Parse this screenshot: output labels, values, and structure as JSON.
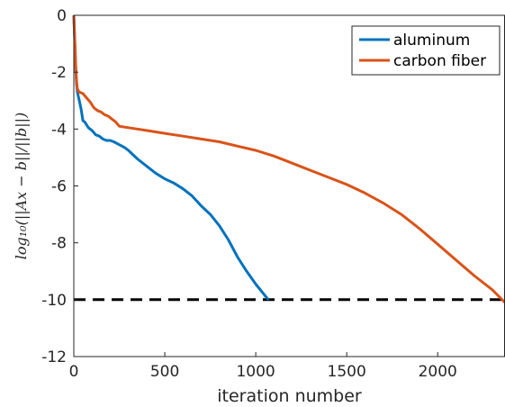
{
  "chart_data": {
    "type": "line",
    "title": "",
    "xlabel": "iteration number",
    "ylabel": "log₁₀(||Ax − b||/||b||)",
    "xlim": [
      0,
      2370
    ],
    "ylim": [
      -12,
      0
    ],
    "xticks": [
      0,
      500,
      1000,
      1500,
      2000
    ],
    "yticks": [
      0,
      -2,
      -4,
      -6,
      -8,
      -10,
      -12
    ],
    "xtick_labels": [
      "0",
      "500",
      "1000",
      "1500",
      "2000"
    ],
    "ytick_labels": [
      "0",
      "-2",
      "-4",
      "-6",
      "-8",
      "-10",
      "-12"
    ],
    "grid": false,
    "legend_position": "top-right",
    "series": [
      {
        "name": "aluminum",
        "color": "#0072BD",
        "x": [
          0,
          5,
          10,
          15,
          20,
          30,
          40,
          50,
          60,
          70,
          80,
          100,
          120,
          140,
          160,
          180,
          200,
          220,
          250,
          280,
          300,
          350,
          400,
          450,
          500,
          550,
          600,
          650,
          700,
          750,
          800,
          850,
          900,
          950,
          1000,
          1050,
          1070
        ],
        "y": [
          0,
          -0.9,
          -1.8,
          -2.4,
          -2.7,
          -3.0,
          -3.3,
          -3.7,
          -3.75,
          -3.85,
          -3.95,
          -4.05,
          -4.2,
          -4.25,
          -4.35,
          -4.4,
          -4.4,
          -4.45,
          -4.55,
          -4.65,
          -4.75,
          -5.05,
          -5.3,
          -5.55,
          -5.75,
          -5.9,
          -6.1,
          -6.35,
          -6.7,
          -7.0,
          -7.4,
          -7.9,
          -8.5,
          -9.0,
          -9.45,
          -9.85,
          -10.0
        ]
      },
      {
        "name": "carbon fiber",
        "color": "#D95319",
        "x": [
          0,
          5,
          10,
          15,
          20,
          30,
          50,
          70,
          90,
          110,
          130,
          150,
          170,
          190,
          210,
          230,
          250,
          300,
          350,
          400,
          500,
          600,
          700,
          800,
          900,
          1000,
          1100,
          1200,
          1300,
          1400,
          1500,
          1600,
          1700,
          1800,
          1900,
          2000,
          2100,
          2200,
          2300,
          2370
        ],
        "y": [
          0,
          -0.8,
          -1.7,
          -2.3,
          -2.6,
          -2.7,
          -2.75,
          -2.9,
          -3.05,
          -3.25,
          -3.35,
          -3.4,
          -3.5,
          -3.55,
          -3.65,
          -3.75,
          -3.9,
          -3.95,
          -4.0,
          -4.05,
          -4.15,
          -4.25,
          -4.35,
          -4.45,
          -4.6,
          -4.75,
          -4.95,
          -5.2,
          -5.45,
          -5.7,
          -5.95,
          -6.25,
          -6.6,
          -7.0,
          -7.5,
          -8.05,
          -8.6,
          -9.15,
          -9.65,
          -10.1
        ]
      },
      {
        "name": "",
        "color": "#000000",
        "dashed": true,
        "x": [
          0,
          2370
        ],
        "y": [
          -10,
          -10
        ]
      }
    ]
  }
}
